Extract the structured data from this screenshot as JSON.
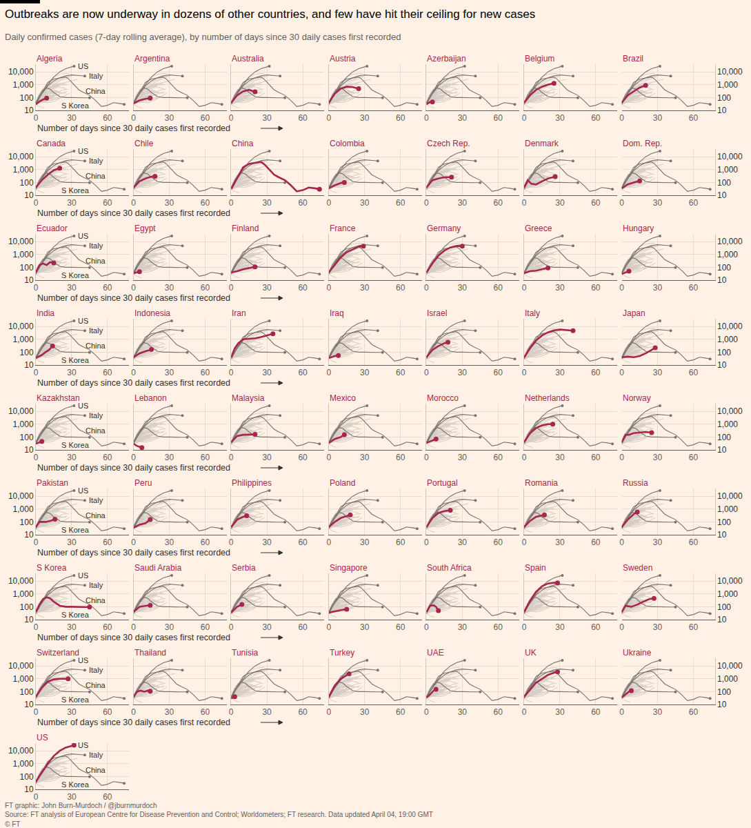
{
  "chart_data": {
    "type": "line",
    "title": "Outbreaks are now underway in dozens of other countries, and few have hit their ceiling for new cases",
    "subtitle": "Daily confirmed cases (7-day rolling average), by number of days since 30 daily cases first recorded",
    "xlabel": "Number of days since 30 daily cases first recorded",
    "footer": [
      "FT graphic: John Burn-Murdoch / @jburnmurdoch",
      "Source: FT analysis of European Centre for Disease Prevention and Control; Worldometers; FT research. Data updated April 04, 19:00 GMT",
      "© FT"
    ],
    "log": "y",
    "grid": true,
    "color": "#a7264f",
    "marker": "circle",
    "xlim": [
      0,
      78
    ],
    "xticks": [
      0,
      30,
      60
    ],
    "ylim": [
      10,
      40000
    ],
    "yticks": [
      10,
      100,
      {
        "value": 1000,
        "label": "1,000"
      },
      {
        "value": 10000,
        "label": "10,000"
      }
    ],
    "series": [
      {
        "name": "Algeria",
        "x": [
          0,
          3,
          6,
          9
        ],
        "values": [
          30,
          50,
          70,
          90
        ]
      },
      {
        "name": "Argentina",
        "x": [
          0,
          5,
          10,
          14
        ],
        "values": [
          35,
          60,
          80,
          90
        ]
      },
      {
        "name": "Australia",
        "x": [
          0,
          5,
          10,
          15,
          20
        ],
        "values": [
          40,
          150,
          300,
          400,
          280
        ]
      },
      {
        "name": "Austria",
        "x": [
          0,
          5,
          10,
          15,
          20,
          25
        ],
        "values": [
          40,
          200,
          500,
          700,
          650,
          500
        ]
      },
      {
        "name": "Azerbaijan",
        "x": [
          0,
          3,
          5
        ],
        "values": [
          30,
          45,
          45
        ]
      },
      {
        "name": "Belgium",
        "x": [
          0,
          5,
          10,
          15,
          20,
          25
        ],
        "values": [
          40,
          150,
          400,
          700,
          1000,
          1300
        ]
      },
      {
        "name": "Brazil",
        "x": [
          0,
          5,
          10,
          15,
          20
        ],
        "values": [
          40,
          150,
          300,
          600,
          900
        ]
      },
      {
        "name": "Canada",
        "x": [
          0,
          5,
          10,
          15,
          20
        ],
        "values": [
          40,
          150,
          400,
          900,
          1300
        ]
      },
      {
        "name": "Chile",
        "x": [
          0,
          5,
          10,
          15,
          18
        ],
        "values": [
          40,
          120,
          200,
          280,
          300
        ]
      },
      {
        "name": "China",
        "color": "#7a7470",
        "x": [
          0,
          5,
          10,
          15,
          20,
          25,
          28,
          32,
          36,
          40,
          45,
          50,
          55,
          60,
          65,
          70,
          74
        ],
        "values": [
          30,
          200,
          1500,
          2800,
          3500,
          4000,
          2500,
          1000,
          400,
          250,
          150,
          60,
          20,
          25,
          40,
          35,
          30
        ]
      },
      {
        "name": "Colombia",
        "x": [
          0,
          5,
          10,
          13
        ],
        "values": [
          35,
          60,
          90,
          100
        ]
      },
      {
        "name": "Czech Rep.",
        "x": [
          0,
          5,
          10,
          15,
          21
        ],
        "values": [
          40,
          150,
          200,
          250,
          260
        ]
      },
      {
        "name": "Denmark",
        "x": [
          0,
          3,
          6,
          10,
          15,
          20,
          26
        ],
        "values": [
          40,
          150,
          80,
          70,
          120,
          200,
          280
        ]
      },
      {
        "name": "Dom. Rep.",
        "x": [
          0,
          5,
          10,
          15
        ],
        "values": [
          35,
          70,
          100,
          130
        ]
      },
      {
        "name": "Ecuador",
        "x": [
          0,
          3,
          6,
          9,
          12,
          15
        ],
        "values": [
          40,
          150,
          200,
          150,
          250,
          220
        ]
      },
      {
        "name": "Egypt",
        "x": [
          0,
          5
        ],
        "values": [
          35,
          45
        ]
      },
      {
        "name": "Finland",
        "x": [
          0,
          5,
          10,
          15,
          20
        ],
        "values": [
          40,
          50,
          70,
          90,
          110
        ]
      },
      {
        "name": "France",
        "x": [
          0,
          5,
          10,
          15,
          20,
          25,
          29
        ],
        "values": [
          40,
          150,
          600,
          1500,
          2500,
          4000,
          4500
        ]
      },
      {
        "name": "Germany",
        "x": [
          0,
          5,
          10,
          15,
          20,
          25,
          30
        ],
        "values": [
          40,
          200,
          800,
          2000,
          3500,
          4500,
          4500
        ]
      },
      {
        "name": "Greece",
        "x": [
          0,
          5,
          10,
          15,
          20
        ],
        "values": [
          35,
          50,
          55,
          70,
          90
        ]
      },
      {
        "name": "Hungary",
        "x": [
          0,
          3,
          6
        ],
        "values": [
          30,
          40,
          50
        ]
      },
      {
        "name": "India",
        "x": [
          0,
          5,
          8,
          11,
          14
        ],
        "values": [
          35,
          60,
          100,
          150,
          300
        ]
      },
      {
        "name": "Indonesia",
        "x": [
          0,
          5,
          10,
          15
        ],
        "values": [
          40,
          80,
          120,
          160
        ]
      },
      {
        "name": "Iran",
        "x": [
          0,
          3,
          6,
          10,
          15,
          20,
          25,
          30,
          35
        ],
        "values": [
          40,
          200,
          500,
          1000,
          1100,
          1200,
          1500,
          2000,
          2700
        ]
      },
      {
        "name": "Iraq",
        "x": [
          0,
          5,
          8
        ],
        "values": [
          35,
          50,
          55
        ]
      },
      {
        "name": "Israel",
        "x": [
          0,
          5,
          10,
          15,
          18
        ],
        "values": [
          40,
          150,
          300,
          500,
          600
        ]
      },
      {
        "name": "Italy",
        "color": "#7a7470",
        "x": [
          0,
          5,
          10,
          15,
          20,
          25,
          30,
          35,
          38,
          41
        ],
        "values": [
          40,
          200,
          800,
          2000,
          3500,
          5000,
          5800,
          5500,
          5000,
          4700
        ]
      },
      {
        "name": "Japan",
        "x": [
          0,
          5,
          10,
          15,
          20,
          25,
          28
        ],
        "values": [
          40,
          45,
          40,
          50,
          80,
          150,
          220
        ]
      },
      {
        "name": "Kazakhstan",
        "x": [
          0,
          3,
          5
        ],
        "values": [
          30,
          40,
          45
        ]
      },
      {
        "name": "Lebanon",
        "x": [
          0,
          3,
          7
        ],
        "values": [
          30,
          20,
          15
        ]
      },
      {
        "name": "Malaysia",
        "x": [
          0,
          5,
          10,
          15,
          20
        ],
        "values": [
          40,
          120,
          150,
          150,
          160
        ]
      },
      {
        "name": "Mexico",
        "x": [
          0,
          5,
          10,
          13
        ],
        "values": [
          35,
          70,
          100,
          150
        ]
      },
      {
        "name": "Morocco",
        "x": [
          0,
          5,
          8
        ],
        "values": [
          35,
          55,
          70
        ]
      },
      {
        "name": "Netherlands",
        "x": [
          0,
          5,
          10,
          15,
          20,
          24
        ],
        "values": [
          40,
          200,
          500,
          800,
          1000,
          1000
        ]
      },
      {
        "name": "Norway",
        "x": [
          0,
          3,
          6,
          10,
          15,
          20,
          25
        ],
        "values": [
          40,
          150,
          150,
          200,
          220,
          250,
          220
        ]
      },
      {
        "name": "Pakistan",
        "x": [
          0,
          3,
          8,
          12,
          16
        ],
        "values": [
          40,
          100,
          100,
          120,
          160
        ]
      },
      {
        "name": "Peru",
        "x": [
          0,
          5,
          10,
          14
        ],
        "values": [
          35,
          60,
          80,
          150
        ]
      },
      {
        "name": "Philippines",
        "x": [
          0,
          5,
          10,
          13
        ],
        "values": [
          40,
          150,
          250,
          300
        ]
      },
      {
        "name": "Poland",
        "x": [
          0,
          5,
          10,
          15,
          18
        ],
        "values": [
          40,
          100,
          200,
          300,
          350
        ]
      },
      {
        "name": "Portugal",
        "x": [
          0,
          5,
          10,
          15,
          20
        ],
        "values": [
          40,
          200,
          500,
          700,
          800
        ]
      },
      {
        "name": "Romania",
        "x": [
          0,
          5,
          10,
          15,
          17
        ],
        "values": [
          40,
          120,
          250,
          300,
          350
        ]
      },
      {
        "name": "Russia",
        "x": [
          0,
          5,
          10,
          13
        ],
        "values": [
          40,
          150,
          400,
          600
        ]
      },
      {
        "name": "S Korea",
        "color": "#7a7470",
        "x": [
          0,
          3,
          6,
          9,
          12,
          15,
          20,
          25,
          30,
          35,
          40,
          45
        ],
        "values": [
          40,
          150,
          400,
          550,
          450,
          250,
          120,
          100,
          100,
          95,
          95,
          95
        ]
      },
      {
        "name": "Saudi Arabia",
        "x": [
          0,
          5,
          10,
          14
        ],
        "values": [
          40,
          100,
          120,
          130
        ]
      },
      {
        "name": "Serbia",
        "x": [
          0,
          5,
          9
        ],
        "values": [
          35,
          100,
          150
        ]
      },
      {
        "name": "Singapore",
        "x": [
          0,
          5,
          10,
          15
        ],
        "values": [
          35,
          45,
          55,
          65
        ]
      },
      {
        "name": "South Africa",
        "x": [
          0,
          3,
          6,
          8,
          10
        ],
        "values": [
          40,
          120,
          130,
          100,
          50
        ]
      },
      {
        "name": "Spain",
        "x": [
          0,
          5,
          10,
          15,
          20,
          25,
          28
        ],
        "values": [
          40,
          300,
          1500,
          4000,
          6500,
          7500,
          7200
        ]
      },
      {
        "name": "Sweden",
        "x": [
          0,
          3,
          8,
          13,
          18,
          23,
          27
        ],
        "values": [
          40,
          120,
          100,
          150,
          250,
          400,
          450
        ]
      },
      {
        "name": "Switzerland",
        "x": [
          0,
          5,
          10,
          15,
          20,
          25,
          27
        ],
        "values": [
          40,
          200,
          600,
          900,
          1000,
          1000,
          1000
        ]
      },
      {
        "name": "Thailand",
        "x": [
          0,
          3,
          6,
          9,
          12,
          14
        ],
        "values": [
          40,
          100,
          120,
          100,
          120,
          110
        ]
      },
      {
        "name": "Tunisia",
        "x": [
          0,
          3
        ],
        "values": [
          30,
          40
        ]
      },
      {
        "name": "Turkey",
        "x": [
          0,
          5,
          10,
          15,
          17
        ],
        "values": [
          40,
          300,
          1000,
          2000,
          2500
        ]
      },
      {
        "name": "UAE",
        "x": [
          0,
          3,
          6,
          8
        ],
        "values": [
          35,
          60,
          120,
          150
        ]
      },
      {
        "name": "UK",
        "x": [
          0,
          5,
          10,
          15,
          20,
          25,
          28
        ],
        "values": [
          40,
          150,
          500,
          1000,
          2000,
          3000,
          3500
        ]
      },
      {
        "name": "Ukraine",
        "x": [
          0,
          3,
          6,
          8
        ],
        "values": [
          35,
          60,
          100,
          120
        ]
      },
      {
        "name": "US",
        "color": "#7a7470",
        "x": [
          0,
          5,
          10,
          15,
          20,
          25,
          30,
          32
        ],
        "values": [
          40,
          200,
          1000,
          4000,
          10000,
          18000,
          26000,
          28000
        ]
      }
    ]
  }
}
